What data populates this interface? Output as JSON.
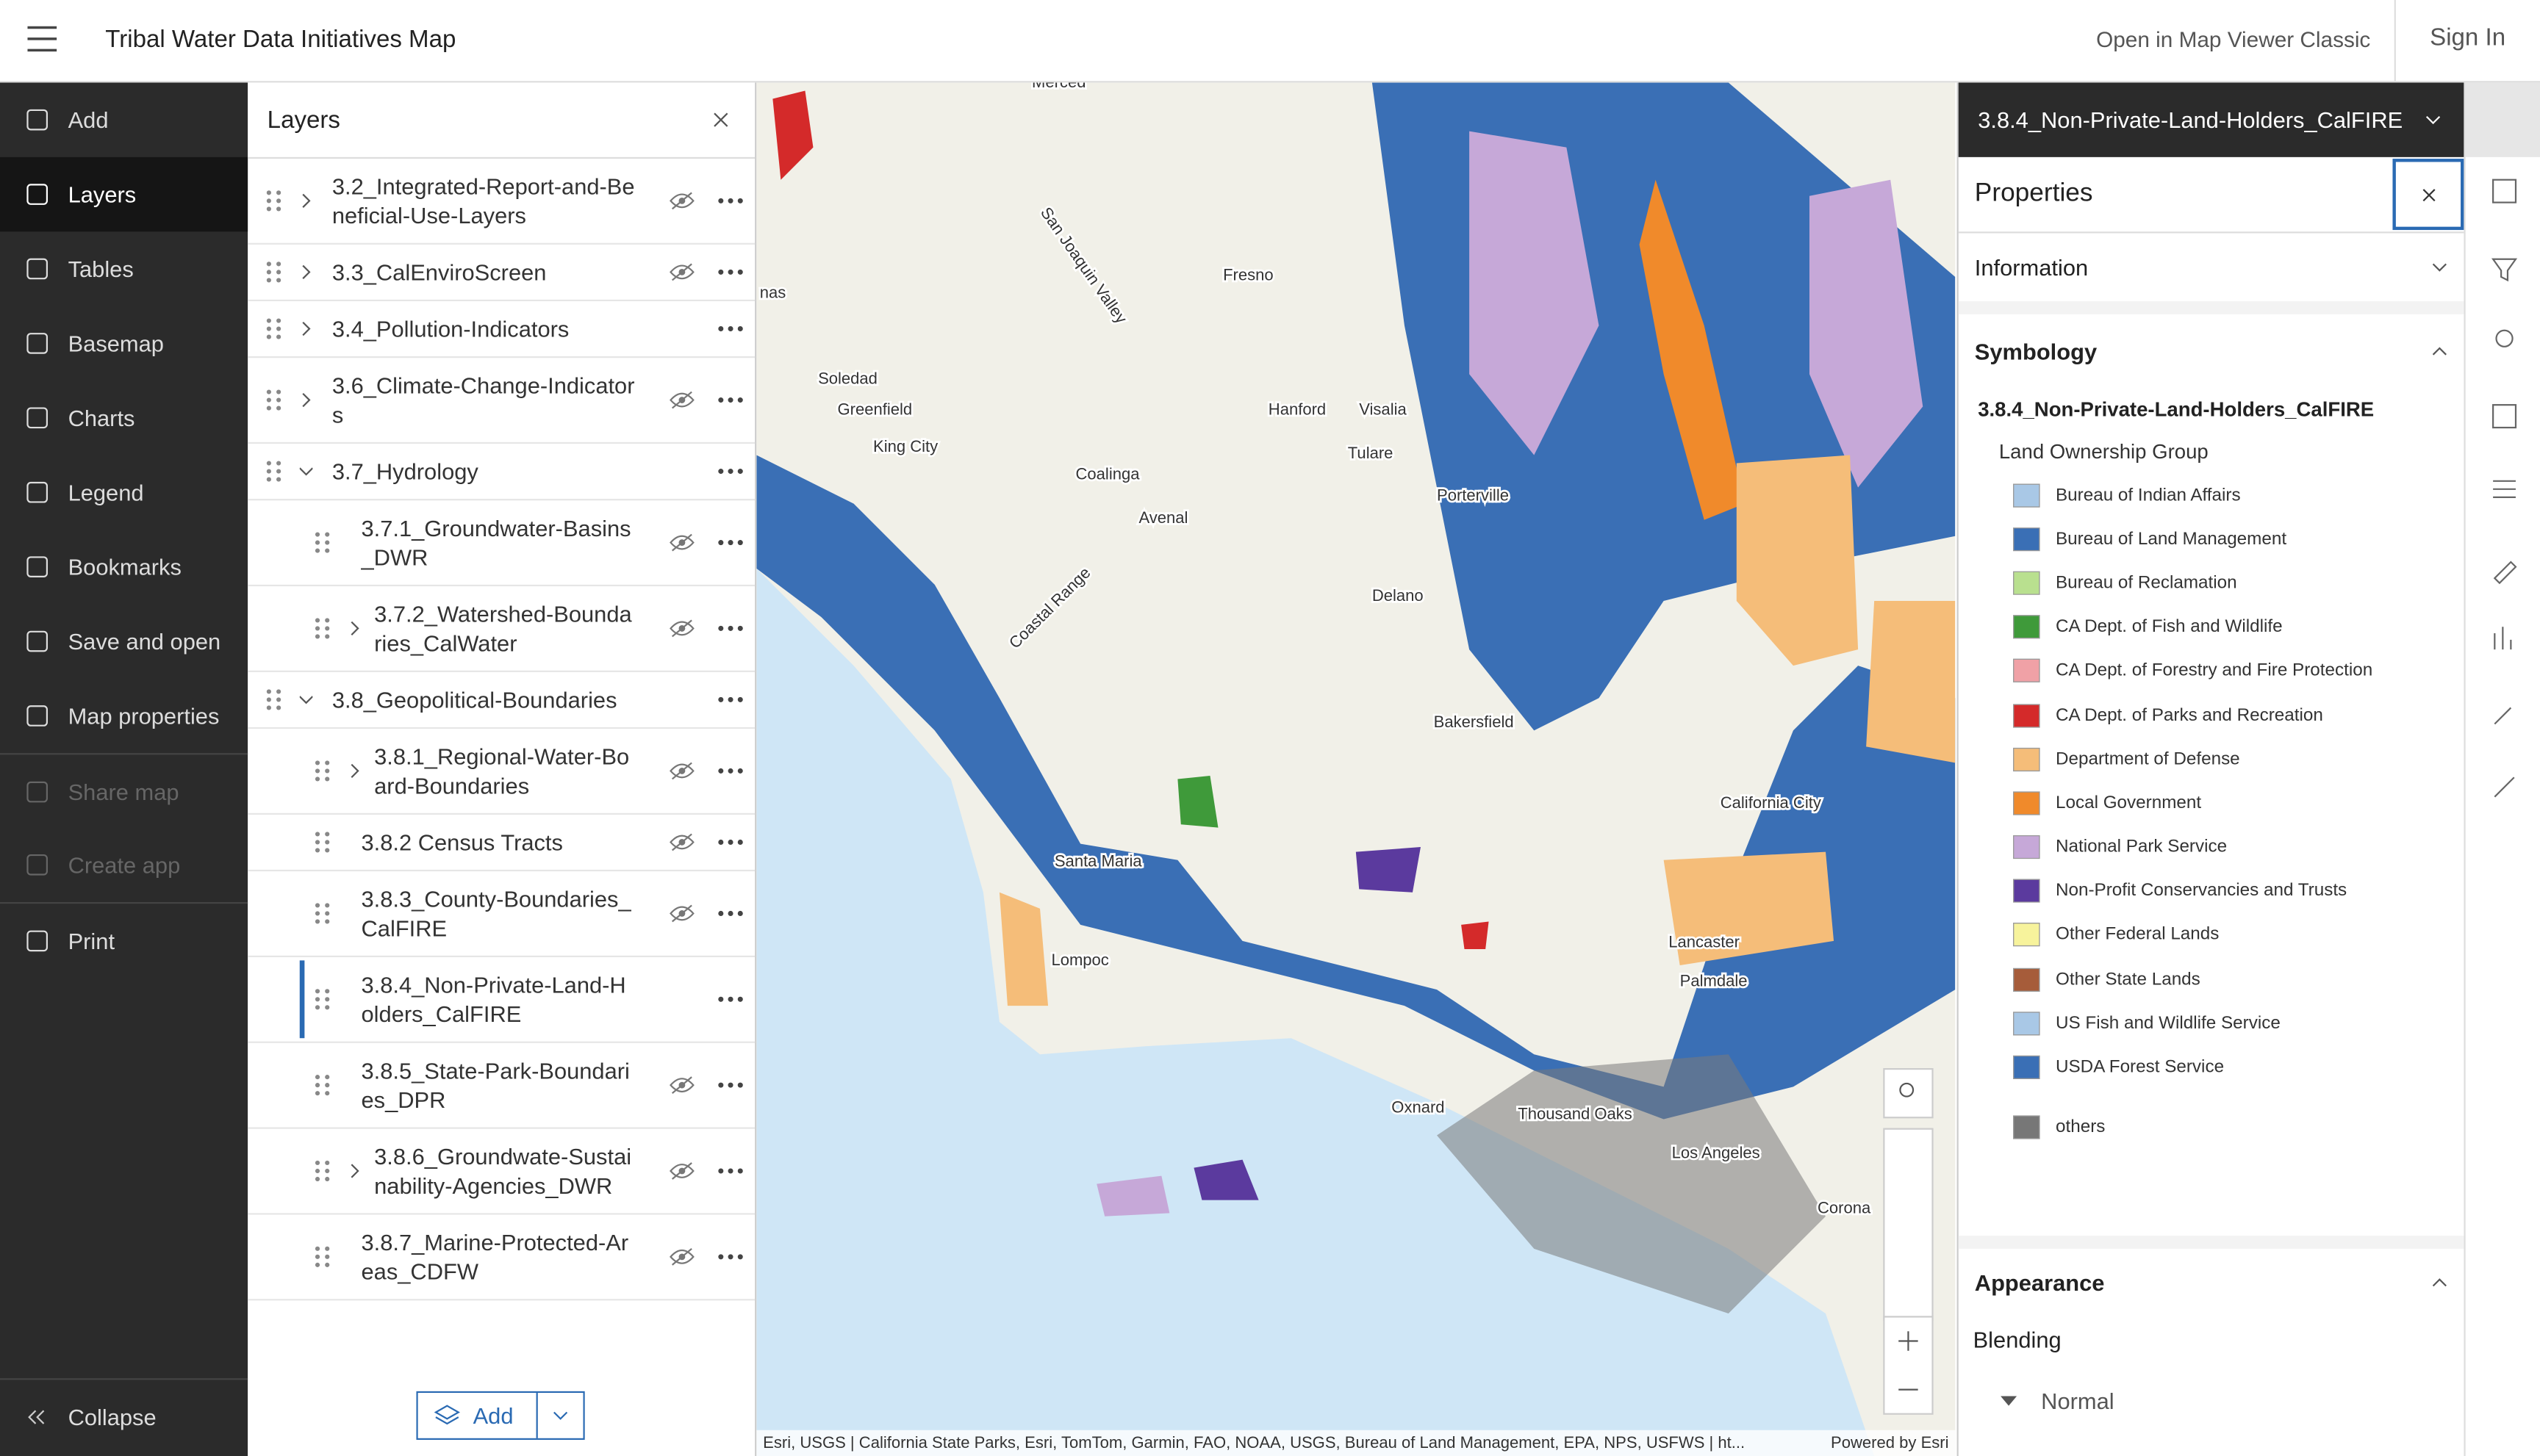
{
  "header": {
    "title": "Tribal Water Data Initiatives Map",
    "open_classic": "Open in Map Viewer Classic",
    "sign_in": "Sign In"
  },
  "nav": {
    "items": [
      "Add",
      "Layers",
      "Tables",
      "Basemap",
      "Charts",
      "Legend",
      "Bookmarks",
      "Save and open",
      "Map properties",
      "Share map",
      "Create app",
      "Print"
    ],
    "collapse": "Collapse"
  },
  "layers": {
    "title": "Layers",
    "add": "Add",
    "items": [
      {
        "name": "3.2_Integrated-Report-and-Beneficial-Use-Layers",
        "level": 0,
        "expand": true,
        "hidden": true
      },
      {
        "name": "3.3_CalEnviroScreen",
        "level": 0,
        "expand": true,
        "hidden": true
      },
      {
        "name": "3.4_Pollution-Indicators",
        "level": 0,
        "expand": true,
        "hidden": false
      },
      {
        "name": "3.6_Climate-Change-Indicators",
        "level": 0,
        "expand": true,
        "hidden": true
      },
      {
        "name": "3.7_Hydrology",
        "level": 0,
        "expand": true,
        "hidden": false
      },
      {
        "name": "3.7.1_Groundwater-Basins_DWR",
        "level": 1,
        "expand": false,
        "hidden": true
      },
      {
        "name": "3.7.2_Watershed-Boundaries_CalWater",
        "level": 1,
        "expand": true,
        "hidden": true
      },
      {
        "name": "3.8_Geopolitical-Boundaries",
        "level": 0,
        "expand": true,
        "hidden": false
      },
      {
        "name": "3.8.1_Regional-Water-Board-Boundaries",
        "level": 1,
        "expand": true,
        "hidden": true
      },
      {
        "name": "3.8.2 Census Tracts",
        "level": 1,
        "expand": false,
        "hidden": true
      },
      {
        "name": "3.8.3_County-Boundaries_CalFIRE",
        "level": 1,
        "expand": false,
        "hidden": true
      },
      {
        "name": "3.8.4_Non-Private-Land-Holders_CalFIRE",
        "level": 1,
        "expand": false,
        "hidden": false
      },
      {
        "name": "3.8.5_State-Park-Boundaries_DPR",
        "level": 1,
        "expand": false,
        "hidden": true
      },
      {
        "name": "3.8.6_Groundwate-Sustainability-Agencies_DWR",
        "level": 1,
        "expand": true,
        "hidden": true
      },
      {
        "name": "3.8.7_Marine-Protected-Areas_CDFW",
        "level": 1,
        "expand": false,
        "hidden": true
      }
    ]
  },
  "map": {
    "labels": [
      "Merced",
      "San Joaquin Valley",
      "Fresno",
      "Soledad",
      "Greenfield",
      "King City",
      "Hanford",
      "Visalia",
      "Tulare",
      "Coalinga",
      "Porterville",
      "Avenal",
      "Delano",
      "Coastal Range",
      "Bakersfield",
      "California City",
      "Santa Maria",
      "Lompoc",
      "Lancaster",
      "Palmdale",
      "Oxnard",
      "Thousand Oaks",
      "Los Angeles",
      "Corona",
      "nas"
    ],
    "attribution": "Esri, USGS | California State Parks, Esri, TomTom, Garmin, FAO, NOAA, USGS, Bureau of Land Management, EPA, NPS, USFWS | ht...",
    "powered": "Powered by Esri"
  },
  "properties": {
    "layer": "3.8.4_Non-Private-Land-Holders_CalFIRE",
    "title": "Properties",
    "information": "Information",
    "symbology": "Symbology",
    "symbology_layer": "3.8.4_Non-Private-Land-Holders_CalFIRE",
    "field": "Land Ownership Group",
    "legend": [
      {
        "label": "Bureau of Indian Affairs",
        "color": "#a9c8e6"
      },
      {
        "label": "Bureau of Land Management",
        "color": "#3a6fb5"
      },
      {
        "label": "Bureau of Reclamation",
        "color": "#b9e08f"
      },
      {
        "label": "CA Dept. of Fish and Wildlife",
        "color": "#3f9a3a"
      },
      {
        "label": "CA Dept. of Forestry and Fire Protection",
        "color": "#f0a1a6"
      },
      {
        "label": "CA Dept. of Parks and Recreation",
        "color": "#d42a2a"
      },
      {
        "label": "Department of Defense",
        "color": "#f5bd79"
      },
      {
        "label": "Local Government",
        "color": "#f08a2b"
      },
      {
        "label": "National Park Service",
        "color": "#c6a8d8"
      },
      {
        "label": "Non-Profit Conservancies and Trusts",
        "color": "#5b3a9e"
      },
      {
        "label": "Other Federal Lands",
        "color": "#f7f39c"
      },
      {
        "label": "Other State Lands",
        "color": "#a65c3a"
      },
      {
        "label": "US Fish and Wildlife Service",
        "color": "#a9c8e6"
      },
      {
        "label": "USDA Forest Service",
        "color": "#3a6fb5"
      }
    ],
    "others": {
      "label": "others",
      "color": "#777777"
    },
    "appearance": "Appearance",
    "blending": "Blending",
    "blend_mode": "Normal"
  }
}
